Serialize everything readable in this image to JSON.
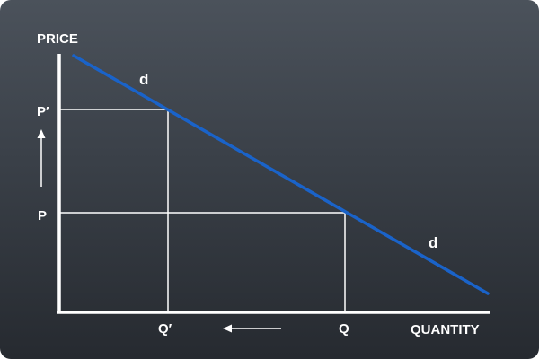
{
  "diagram": {
    "y_axis_label": "PRICE",
    "x_axis_label": "QUANTITY",
    "curve_label_top": "d",
    "curve_label_bottom": "d",
    "price_high_label": "P′",
    "price_label": "P",
    "quantity_low_label": "Q′",
    "quantity_label": "Q",
    "curve_color": "#1a63c9",
    "axis_color": "#ffffff",
    "guide_color": "#ffffff",
    "background_color_top": "#4b525b",
    "background_color_bottom": "#262a30",
    "arrow_up_icon": "arrow-up-icon",
    "arrow_left_icon": "arrow-left-icon"
  }
}
